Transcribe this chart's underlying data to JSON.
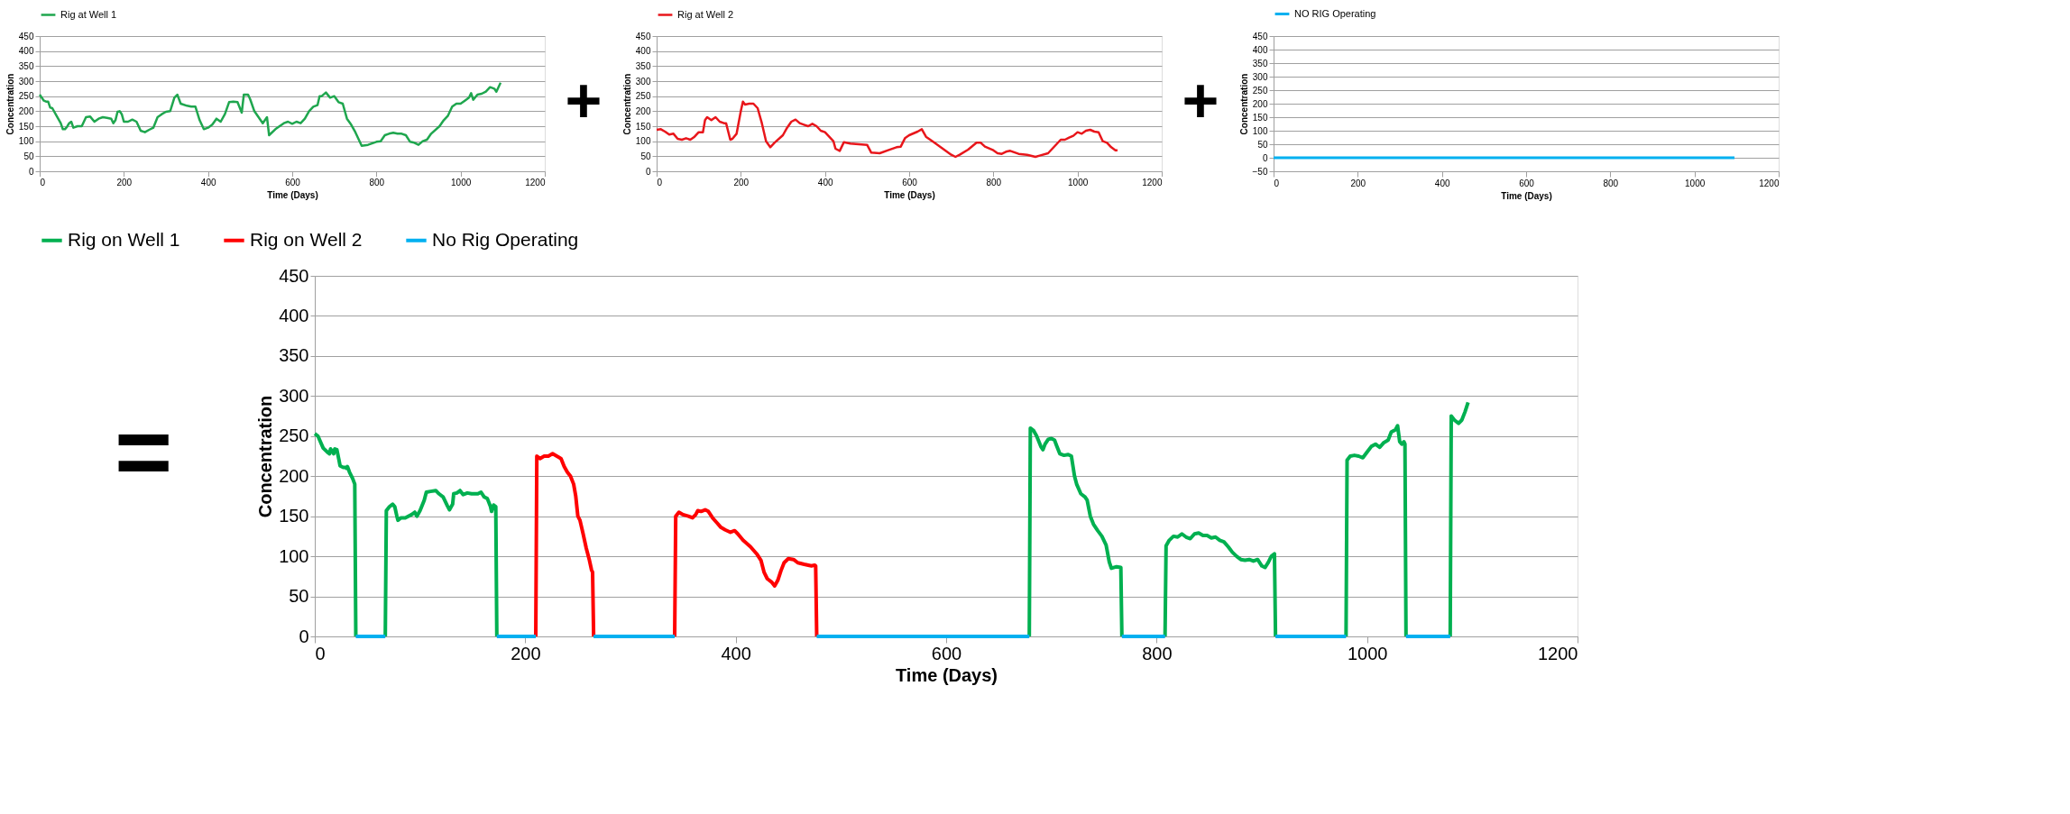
{
  "chart_data": [
    {
      "type": "line",
      "xlabel": "Time (Days)",
      "ylabel": "Concentration",
      "xlim": [
        0,
        1200
      ],
      "xticks": [
        0,
        200,
        400,
        600,
        800,
        1000,
        1200
      ],
      "ylim": [
        0,
        450
      ],
      "yticks": [
        0,
        50,
        100,
        150,
        200,
        250,
        300,
        350,
        400,
        450
      ],
      "grid": "y",
      "legend": "top",
      "annotations": [
        "+"
      ],
      "series": [
        {
          "name": "Rig at Well 1",
          "color": "#1fa64e",
          "x": [
            0,
            10,
            15,
            20,
            25,
            30,
            40,
            50,
            55,
            60,
            65,
            70,
            75,
            80,
            90,
            100,
            110,
            120,
            130,
            140,
            150,
            160,
            170,
            175,
            180,
            185,
            190,
            195,
            200,
            210,
            220,
            230,
            240,
            250,
            260,
            270,
            280,
            290,
            300,
            310,
            320,
            327,
            335,
            350,
            360,
            370,
            380,
            390,
            400,
            410,
            420,
            430,
            440,
            450,
            460,
            470,
            480,
            485,
            495,
            500,
            510,
            520,
            530,
            540,
            545,
            560,
            580,
            590,
            600,
            610,
            620,
            630,
            640,
            650,
            660,
            665,
            670,
            680,
            690,
            700,
            710,
            720,
            730,
            740,
            750,
            760,
            765,
            780,
            800,
            810,
            820,
            830,
            840,
            850,
            860,
            870,
            880,
            890,
            900,
            910,
            920,
            930,
            950,
            960,
            970,
            980,
            990,
            1000,
            1010,
            1020,
            1025,
            1030,
            1040,
            1050,
            1060,
            1070,
            1080,
            1085,
            1090,
            1095
          ],
          "values": [
            255,
            235,
            232,
            232,
            212,
            210,
            185,
            160,
            140,
            140,
            148,
            160,
            165,
            145,
            150,
            150,
            180,
            182,
            165,
            175,
            180,
            178,
            175,
            160,
            170,
            198,
            200,
            190,
            165,
            165,
            172,
            165,
            135,
            130,
            138,
            145,
            180,
            190,
            198,
            200,
            245,
            255,
            225,
            218,
            215,
            215,
            170,
            140,
            145,
            155,
            175,
            165,
            190,
            230,
            232,
            230,
            195,
            255,
            255,
            240,
            200,
            180,
            160,
            180,
            120,
            140,
            160,
            165,
            158,
            165,
            160,
            175,
            200,
            215,
            220,
            250,
            250,
            262,
            245,
            250,
            230,
            225,
            175,
            155,
            130,
            100,
            85,
            88,
            98,
            100,
            120,
            125,
            128,
            125,
            125,
            120,
            98,
            95,
            88,
            100,
            105,
            125,
            150,
            170,
            185,
            215,
            225,
            225,
            235,
            245,
            260,
            238,
            255,
            258,
            265,
            280,
            275,
            265,
            280,
            295
          ]
        }
      ]
    },
    {
      "type": "line",
      "xlabel": "Time (Days)",
      "ylabel": "Concentration",
      "xlim": [
        0,
        1200
      ],
      "xticks": [
        0,
        200,
        400,
        600,
        800,
        1000,
        1200
      ],
      "ylim": [
        0,
        450
      ],
      "yticks": [
        0,
        50,
        100,
        150,
        200,
        250,
        300,
        350,
        400,
        450
      ],
      "grid": "y",
      "legend": "top",
      "annotations": [
        "+"
      ],
      "series": [
        {
          "name": "Rig at Well 2",
          "color": "#e8161b",
          "x": [
            0,
            10,
            20,
            30,
            40,
            50,
            60,
            70,
            80,
            90,
            100,
            110,
            115,
            120,
            130,
            140,
            150,
            160,
            165,
            175,
            180,
            190,
            200,
            205,
            210,
            220,
            230,
            240,
            250,
            260,
            270,
            280,
            300,
            310,
            320,
            330,
            340,
            350,
            360,
            370,
            380,
            390,
            400,
            410,
            420,
            425,
            435,
            445,
            460,
            480,
            500,
            510,
            530,
            550,
            570,
            580,
            590,
            600,
            620,
            630,
            640,
            650,
            660,
            680,
            700,
            710,
            720,
            740,
            760,
            770,
            780,
            800,
            810,
            820,
            830,
            840,
            860,
            880,
            900,
            910,
            930,
            950,
            960,
            970,
            980,
            990,
            1000,
            1010,
            1020,
            1030,
            1040,
            1050,
            1060,
            1070,
            1080,
            1090,
            1095
          ],
          "values": [
            138,
            140,
            132,
            122,
            125,
            108,
            105,
            110,
            105,
            115,
            130,
            130,
            170,
            180,
            170,
            180,
            165,
            160,
            160,
            105,
            108,
            125,
            200,
            232,
            222,
            225,
            225,
            210,
            160,
            100,
            80,
            95,
            120,
            145,
            165,
            172,
            160,
            155,
            150,
            158,
            150,
            135,
            130,
            115,
            100,
            75,
            68,
            97,
            92,
            90,
            88,
            62,
            60,
            70,
            80,
            82,
            110,
            120,
            132,
            140,
            115,
            105,
            95,
            75,
            55,
            48,
            55,
            72,
            95,
            95,
            82,
            70,
            60,
            58,
            65,
            68,
            58,
            55,
            48,
            52,
            60,
            90,
            105,
            105,
            112,
            118,
            130,
            125,
            135,
            138,
            132,
            130,
            100,
            95,
            80,
            70,
            70
          ]
        }
      ]
    },
    {
      "type": "line",
      "xlabel": "Time (Days)",
      "ylabel": "Concentration",
      "xlim": [
        0,
        1200
      ],
      "xticks": [
        0,
        200,
        400,
        600,
        800,
        1000,
        1200
      ],
      "ylim": [
        -50,
        450
      ],
      "yticks": [
        -50,
        0,
        50,
        100,
        150,
        200,
        250,
        300,
        350,
        400,
        450
      ],
      "grid": "y",
      "legend": "top",
      "series": [
        {
          "name": "NO RIG Operating",
          "color": "#00b0f0",
          "x": [
            0,
            1095
          ],
          "values": [
            0,
            0
          ]
        }
      ]
    },
    {
      "type": "line",
      "xlabel": "Time (Days)",
      "ylabel": "Concentration",
      "xlim": [
        0,
        1200
      ],
      "xticks": [
        0,
        200,
        400,
        600,
        800,
        1000,
        1200
      ],
      "ylim": [
        0,
        450
      ],
      "yticks": [
        0,
        50,
        100,
        150,
        200,
        250,
        300,
        350,
        400,
        450
      ],
      "grid": "y",
      "legend": "top",
      "annotations": [
        "="
      ],
      "series": [
        {
          "name": "Rig on Well 1",
          "color": "#00b050",
          "x": [
            0,
            3,
            8,
            12,
            14,
            15,
            18,
            19,
            21,
            23,
            24,
            27,
            29,
            30,
            31,
            33,
            36,
            38,
            39,
            50,
            67,
            68,
            71,
            74,
            76,
            78,
            79,
            82,
            86,
            92,
            95,
            97,
            100,
            104,
            106,
            110,
            115,
            118,
            122,
            126,
            128,
            131,
            132,
            135,
            138,
            141,
            145,
            149,
            155,
            158,
            161,
            164,
            167,
            168,
            170,
            172,
            173,
            400,
            679,
            680,
            683,
            686,
            690,
            692,
            694,
            697,
            700,
            703,
            705,
            708,
            712,
            716,
            719,
            722,
            724,
            728,
            732,
            734,
            737,
            740,
            744,
            748,
            752,
            755,
            757,
            762,
            766,
            767,
            790,
            808,
            809,
            812,
            816,
            820,
            824,
            828,
            832,
            836,
            840,
            844,
            848,
            852,
            856,
            860,
            864,
            868,
            872,
            876,
            880,
            884,
            888,
            892,
            896,
            900,
            903,
            906,
            909,
            912,
            913,
            950,
            980,
            981,
            984,
            988,
            992,
            996,
            1000,
            1004,
            1008,
            1012,
            1016,
            1020,
            1023,
            1027,
            1029,
            1031,
            1033,
            1035,
            1036,
            1037,
            1060,
            1079,
            1080,
            1083,
            1087,
            1090,
            1093,
            1096
          ],
          "values": [
            253,
            250,
            235,
            230,
            228,
            234,
            228,
            234,
            233,
            220,
            213,
            211,
            211,
            210,
            212,
            205,
            197,
            190,
            0,
            null,
            0,
            157,
            162,
            165,
            162,
            150,
            145,
            148,
            148,
            152,
            155,
            150,
            157,
            170,
            180,
            181,
            182,
            178,
            174,
            163,
            158,
            165,
            178,
            179,
            182,
            177,
            179,
            178,
            178,
            180,
            174,
            172,
            162,
            156,
            164,
            162,
            0,
            null,
            0,
            260,
            257,
            250,
            237,
            233,
            240,
            246,
            247,
            245,
            238,
            228,
            226,
            227,
            225,
            200,
            190,
            178,
            174,
            170,
            150,
            140,
            132,
            125,
            114,
            93,
            85,
            87,
            86,
            0,
            null,
            0,
            113,
            120,
            125,
            124,
            128,
            124,
            122,
            128,
            129,
            126,
            126,
            123,
            124,
            120,
            118,
            112,
            105,
            100,
            96,
            95,
            96,
            94,
            96,
            88,
            86,
            92,
            100,
            103,
            0,
            null,
            0,
            220,
            225,
            226,
            225,
            223,
            230,
            237,
            240,
            236,
            242,
            245,
            255,
            258,
            263,
            243,
            240,
            243,
            240,
            0,
            null,
            0,
            275,
            270,
            266,
            270,
            280,
            292
          ]
        },
        {
          "name": "Rig on Well 2",
          "color": "#ff0000",
          "x": [
            210,
            211,
            214,
            218,
            222,
            226,
            230,
            234,
            237,
            240,
            243,
            246,
            248,
            250,
            252,
            255,
            258,
            261,
            263,
            264,
            265,
            300,
            342,
            343,
            346,
            350,
            355,
            359,
            362,
            364,
            367,
            371,
            374,
            378,
            382,
            386,
            390,
            395,
            399,
            402,
            407,
            414,
            420,
            424,
            427,
            430,
            434,
            437,
            440,
            443,
            446,
            450,
            455,
            459,
            465,
            472,
            475,
            476,
            477
          ],
          "values": [
            0,
            225,
            222,
            225,
            225,
            228,
            225,
            222,
            212,
            205,
            200,
            190,
            175,
            150,
            145,
            128,
            110,
            95,
            83,
            80,
            0,
            null,
            0,
            150,
            155,
            152,
            150,
            148,
            152,
            157,
            156,
            158,
            156,
            148,
            142,
            136,
            133,
            130,
            132,
            128,
            120,
            112,
            103,
            95,
            80,
            72,
            68,
            63,
            70,
            82,
            92,
            97,
            96,
            92,
            90,
            88,
            89,
            88,
            0
          ]
        },
        {
          "name": "No Rig Operating",
          "color": "#00b0f0",
          "x": [
            39,
            67,
            68,
            173,
            210,
            211,
            265,
            342,
            343,
            477,
            679,
            680,
            767,
            808,
            809,
            913,
            980,
            981,
            1037,
            1079
          ],
          "values": [
            0,
            0,
            null,
            0,
            0,
            null,
            0,
            0,
            null,
            0,
            0,
            null,
            0,
            0,
            null,
            0,
            0,
            null,
            0,
            0
          ]
        }
      ]
    }
  ]
}
